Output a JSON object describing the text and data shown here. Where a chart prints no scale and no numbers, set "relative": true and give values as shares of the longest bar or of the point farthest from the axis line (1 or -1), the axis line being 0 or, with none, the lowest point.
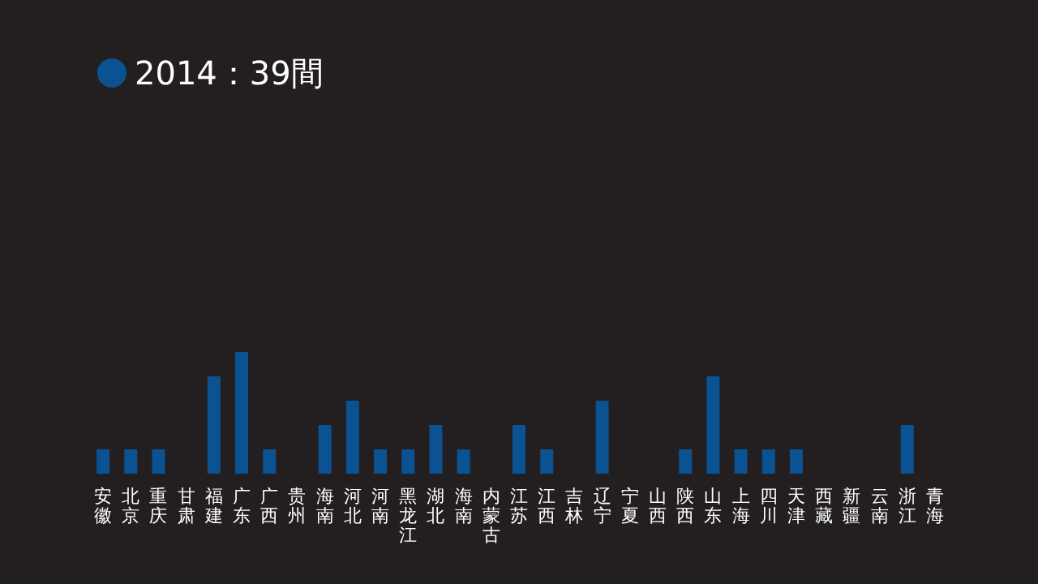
{
  "chart_data": {
    "type": "bar",
    "relative": true,
    "legend": "top left",
    "categories": [
      "安徽",
      "北京",
      "重庆",
      "甘肃",
      "福建",
      "广东",
      "广西",
      "贵州",
      "海南",
      "河北",
      "河南",
      "黑龙江",
      "湖北",
      "海南",
      "内蒙古",
      "江苏",
      "江西",
      "吉林",
      "辽宁",
      "宁夏",
      "山西",
      "陕西",
      "山东",
      "上海",
      "四川",
      "天津",
      "西藏",
      "新疆",
      "云南",
      "浙江",
      "青海"
    ],
    "series": [
      {
        "name": "2014：39間",
        "color": "#0a5291",
        "values": [
          0.2,
          0.2,
          0.2,
          0,
          0.8,
          1,
          0.2,
          0,
          0.4,
          0.6,
          0.2,
          0.2,
          0.4,
          0.2,
          0,
          0.4,
          0.2,
          0,
          0.6,
          0,
          0,
          0.2,
          0.8,
          0.2,
          0.2,
          0.2,
          0,
          0,
          0,
          0.4,
          0
        ]
      }
    ]
  }
}
